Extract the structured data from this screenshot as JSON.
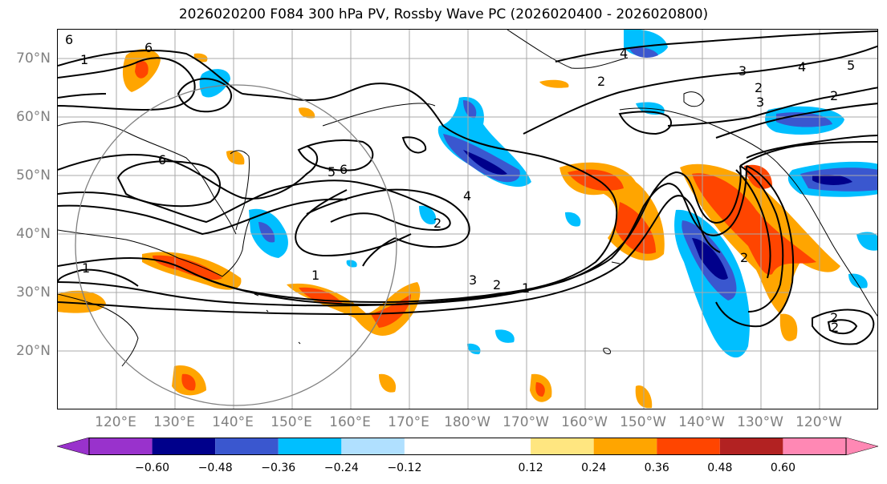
{
  "title": "2026020200 F084 300 hPa PV, Rossby Wave PC (2026020400 - 2026020800)",
  "map": {
    "lat_labels": [
      "70°N",
      "60°N",
      "50°N",
      "40°N",
      "30°N",
      "20°N"
    ],
    "lon_labels": [
      "120°E",
      "130°E",
      "140°E",
      "150°E",
      "160°E",
      "170°E",
      "180°W",
      "170°W",
      "160°W",
      "150°W",
      "140°W",
      "130°W",
      "120°W"
    ],
    "contour_labels": [
      "6",
      "1",
      "6",
      "6",
      "5",
      "6",
      "4",
      "2",
      "3",
      "2",
      "1",
      "2",
      "1",
      "1",
      "4",
      "2",
      "3",
      "4",
      "2",
      "3",
      "5",
      "2",
      "2",
      "2"
    ]
  },
  "colorbar": {
    "tick_labels": [
      "−0.60",
      "−0.48",
      "−0.36",
      "−0.24",
      "−0.12",
      "0.12",
      "0.24",
      "0.36",
      "0.48",
      "0.60"
    ],
    "levels": [
      -0.72,
      -0.6,
      -0.48,
      -0.36,
      -0.24,
      -0.12,
      0.12,
      0.24,
      0.36,
      0.48,
      0.6,
      0.72
    ],
    "colors": [
      "#9932cc",
      "#00008b",
      "#3a57cf",
      "#00bfff",
      "#b0e0ff",
      "#ffffff",
      "#ffe680",
      "#ffa500",
      "#ff4500",
      "#b22222",
      "#ff88b4"
    ],
    "extend_low_color": "#9932cc",
    "extend_high_color": "#ff88b4"
  },
  "colors": {
    "grid": "#a9a9a9",
    "contour": "#000000",
    "axis_label": "#808080",
    "circle": "#808080"
  }
}
